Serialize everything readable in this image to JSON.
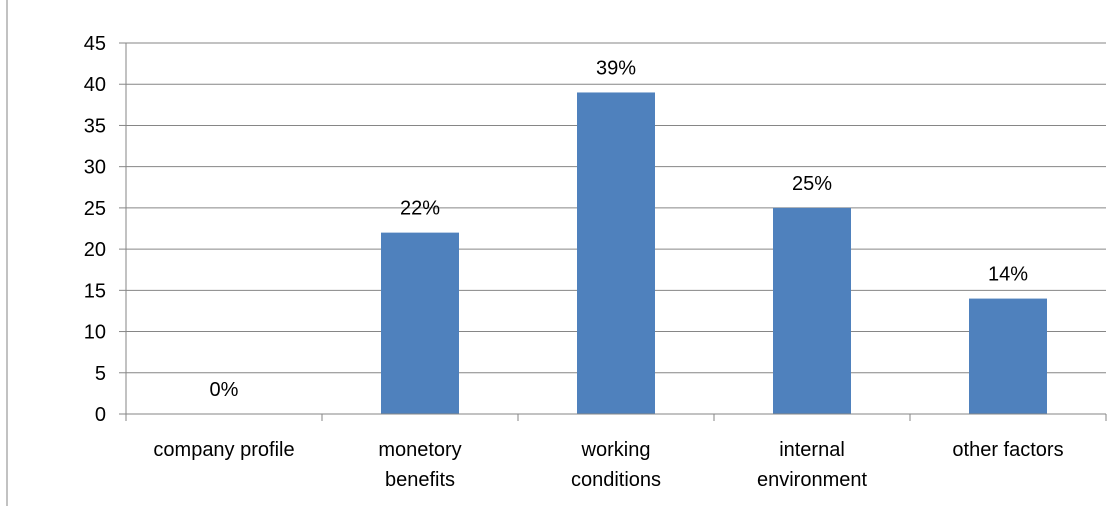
{
  "chart_data": {
    "type": "bar",
    "categories": [
      [
        "company profile"
      ],
      [
        "monetory",
        "benefits"
      ],
      [
        "working",
        "conditions"
      ],
      [
        "internal",
        "environment"
      ],
      [
        "other factors"
      ]
    ],
    "values": [
      0,
      22,
      39,
      25,
      14
    ],
    "data_labels": [
      "0%",
      "22%",
      "39%",
      "25%",
      "14%"
    ],
    "yticks": [
      "0",
      "5",
      "10",
      "15",
      "20",
      "25",
      "30",
      "35",
      "40",
      "45"
    ],
    "ylim": [
      0,
      45
    ],
    "ystep": 5,
    "grid": true,
    "legend": "none",
    "bar_color": "#4f81bd",
    "axis_color": "#868686",
    "title": "",
    "xlabel": "",
    "ylabel": ""
  }
}
